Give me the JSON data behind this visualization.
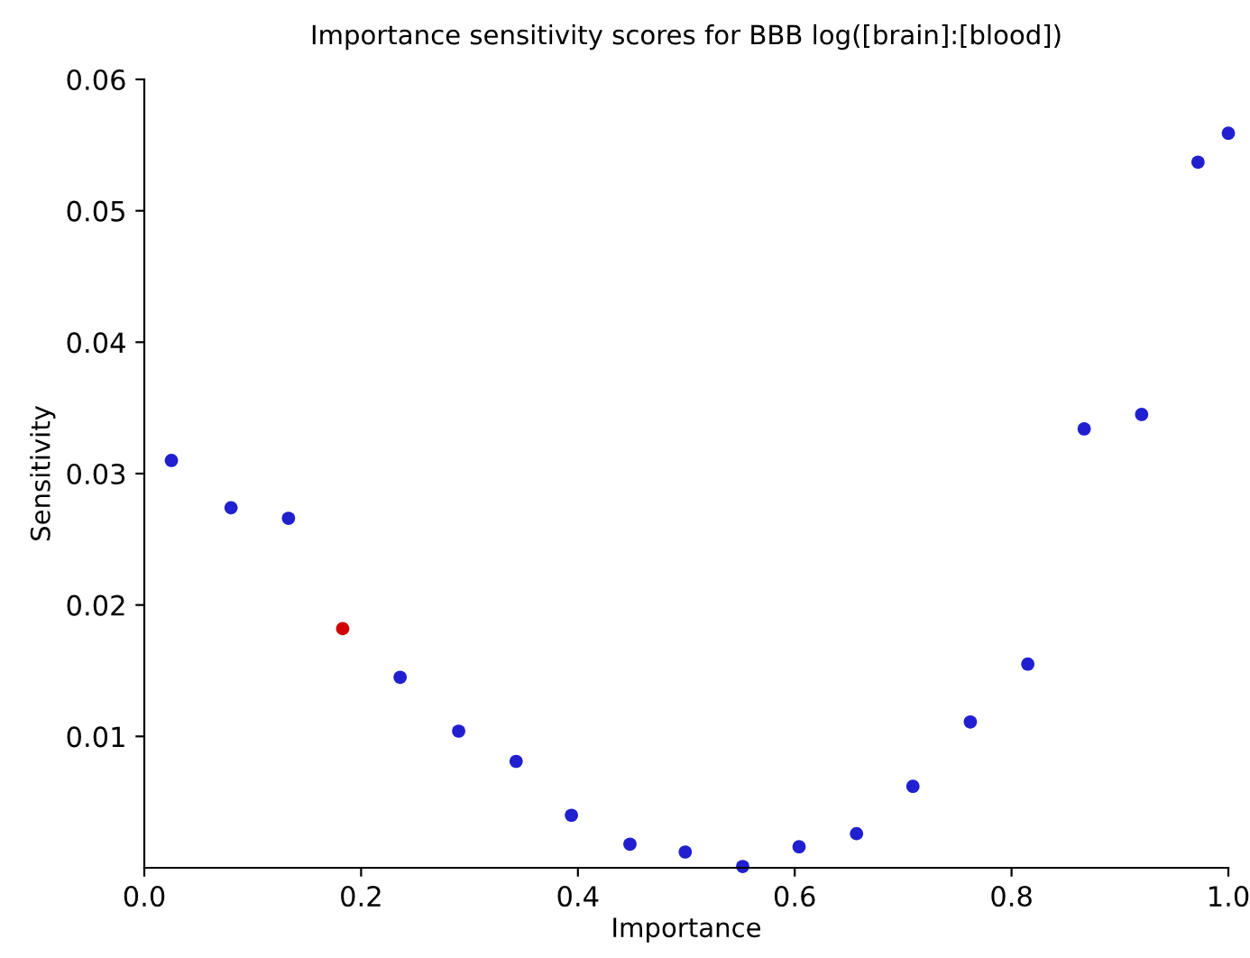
{
  "chart_data": {
    "type": "scatter",
    "title": "Importance sensitivity scores for BBB log([brain]:[blood])",
    "xlabel": "Importance",
    "ylabel": "Sensitivity",
    "series": [
      {
        "x": [
          0.025,
          0.08,
          0.133,
          0.183,
          0.236,
          0.29,
          0.343,
          0.394,
          0.448,
          0.499,
          0.552,
          0.604,
          0.657,
          0.709,
          0.762,
          0.815,
          0.867,
          0.92,
          0.972,
          1.0
        ],
        "values": [
          0.031,
          0.0274,
          0.0266,
          0.0182,
          0.0145,
          0.0104,
          0.0081,
          0.004,
          0.0018,
          0.0012,
          0.0001,
          0.0016,
          0.0026,
          0.0062,
          0.0111,
          0.0155,
          0.0334,
          0.0345,
          0.0537,
          0.0559
        ],
        "colors": [
          "#2020d0",
          "#2020d0",
          "#2020d0",
          "#d00000",
          "#2020d0",
          "#2020d0",
          "#2020d0",
          "#2020d0",
          "#2020d0",
          "#2020d0",
          "#2020d0",
          "#2020d0",
          "#2020d0",
          "#2020d0",
          "#2020d0",
          "#2020d0",
          "#2020d0",
          "#2020d0",
          "#2020d0",
          "#2020d0"
        ]
      }
    ],
    "xlim": [
      0,
      1
    ],
    "xticks": [
      {
        "value": 0,
        "label": "0.0"
      },
      0.2,
      0.4,
      0.6,
      0.8,
      {
        "value": 1,
        "label": "1.0"
      }
    ],
    "ylim": [
      0,
      0.06
    ],
    "yticks": [
      0.01,
      0.02,
      0.03,
      0.04,
      0.05,
      0.06
    ],
    "grid": false,
    "legend": false,
    "marker": "circle"
  }
}
